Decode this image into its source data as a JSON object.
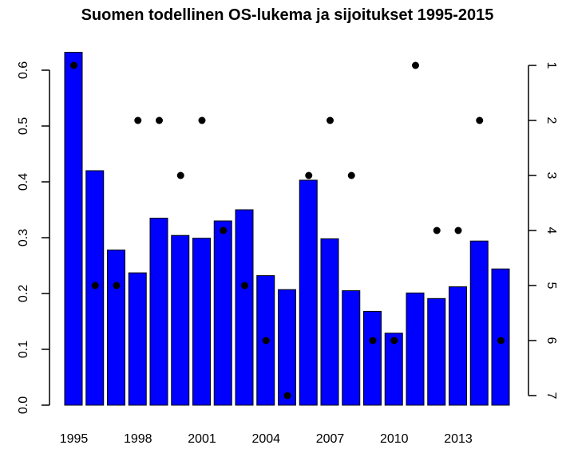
{
  "chart_data": {
    "type": "bar",
    "title": "Suomen todellinen OS-lukema ja sijoitukset 1995-2015",
    "xlabel": "",
    "ylabel": "",
    "ylim": [
      0,
      0.63
    ],
    "y_ticks": [
      "0.0",
      "0.1",
      "0.2",
      "0.3",
      "0.4",
      "0.5",
      "0.6"
    ],
    "y2_ticks": [
      "1",
      "2",
      "3",
      "4",
      "5",
      "6",
      "7"
    ],
    "y2lim": [
      1,
      7
    ],
    "y2_reversed": true,
    "x_tick_labels": [
      "1995",
      "1998",
      "2001",
      "2004",
      "2007",
      "2010",
      "2013"
    ],
    "categories": [
      "1995",
      "1996",
      "1997",
      "1998",
      "1999",
      "2000",
      "2001",
      "2002",
      "2003",
      "2004",
      "2005",
      "2006",
      "2007",
      "2008",
      "2009",
      "2010",
      "2011",
      "2012",
      "2013",
      "2014",
      "2015"
    ],
    "series": [
      {
        "type": "bar",
        "color": "#0000ff",
        "values": [
          0.632,
          0.42,
          0.278,
          0.237,
          0.335,
          0.304,
          0.299,
          0.33,
          0.35,
          0.232,
          0.207,
          0.403,
          0.298,
          0.205,
          0.168,
          0.129,
          0.201,
          0.191,
          0.212,
          0.294,
          0.244
        ]
      },
      {
        "type": "points",
        "color": "#000000",
        "values": [
          1,
          5,
          5,
          2,
          2,
          3,
          2,
          4,
          5,
          6,
          7,
          3,
          2,
          3,
          6,
          6,
          1,
          4,
          4,
          2,
          6
        ]
      }
    ]
  }
}
